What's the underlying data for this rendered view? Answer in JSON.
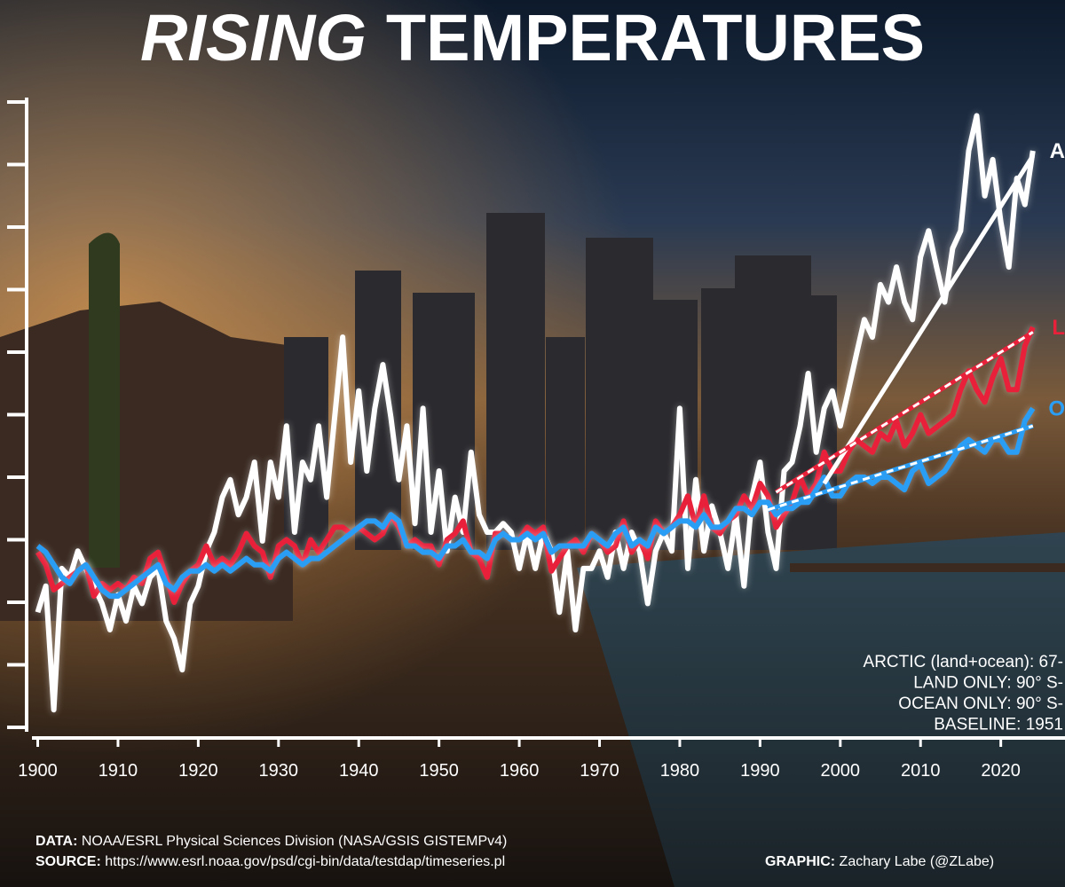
{
  "chart_data": {
    "type": "line",
    "title_emphasis": "RISING",
    "title": "TEMPERATURES",
    "x": [
      1900,
      1901,
      1902,
      1903,
      1904,
      1905,
      1906,
      1907,
      1908,
      1909,
      1910,
      1911,
      1912,
      1913,
      1914,
      1915,
      1916,
      1917,
      1918,
      1919,
      1920,
      1921,
      1922,
      1923,
      1924,
      1925,
      1926,
      1927,
      1928,
      1929,
      1930,
      1931,
      1932,
      1933,
      1934,
      1935,
      1936,
      1937,
      1938,
      1939,
      1940,
      1941,
      1942,
      1943,
      1944,
      1945,
      1946,
      1947,
      1948,
      1949,
      1950,
      1951,
      1952,
      1953,
      1954,
      1955,
      1956,
      1957,
      1958,
      1959,
      1960,
      1961,
      1962,
      1963,
      1964,
      1965,
      1966,
      1967,
      1968,
      1969,
      1970,
      1971,
      1972,
      1973,
      1974,
      1975,
      1976,
      1977,
      1978,
      1979,
      1980,
      1981,
      1982,
      1983,
      1984,
      1985,
      1986,
      1987,
      1988,
      1989,
      1990,
      1991,
      1992,
      1993,
      1994,
      1995,
      1996,
      1997,
      1998,
      1999,
      2000,
      2001,
      2002,
      2003,
      2004,
      2005,
      2006,
      2007,
      2008,
      2009,
      2010,
      2011,
      2012,
      2013,
      2014,
      2015,
      2016,
      2017,
      2018,
      2019,
      2020,
      2021,
      2022,
      2023,
      2024
    ],
    "series": [
      {
        "name": "A",
        "color": "#ffffff",
        "values": [
          -0.58,
          -0.37,
          -1.36,
          -0.23,
          -0.3,
          -0.09,
          -0.23,
          -0.37,
          -0.51,
          -0.72,
          -0.44,
          -0.65,
          -0.37,
          -0.51,
          -0.3,
          -0.23,
          -0.65,
          -0.79,
          -1.04,
          -0.51,
          -0.37,
          -0.09,
          0.06,
          0.34,
          0.48,
          0.2,
          0.34,
          0.62,
          -0.01,
          0.62,
          0.34,
          0.91,
          0.06,
          0.62,
          0.48,
          0.91,
          0.34,
          0.98,
          1.62,
          0.62,
          1.19,
          0.55,
          1.05,
          1.4,
          0.98,
          0.48,
          0.91,
          0.13,
          1.05,
          0.06,
          0.55,
          -0.09,
          0.34,
          0.06,
          0.7,
          0.2,
          0.06,
          0.06,
          0.13,
          0.06,
          -0.23,
          0.06,
          -0.23,
          0.06,
          -0.09,
          -0.58,
          -0.09,
          -0.72,
          -0.23,
          -0.23,
          -0.09,
          -0.3,
          0.06,
          -0.23,
          0.06,
          -0.09,
          -0.51,
          -0.09,
          0.06,
          -0.09,
          1.05,
          -0.23,
          0.48,
          -0.09,
          0.27,
          0.06,
          -0.23,
          0.2,
          -0.37,
          0.34,
          0.62,
          0.06,
          -0.23,
          0.55,
          0.62,
          0.91,
          1.33,
          0.7,
          1.05,
          1.19,
          0.91,
          1.19,
          1.48,
          1.76,
          1.62,
          2.04,
          1.9,
          2.18,
          1.9,
          1.76,
          2.26,
          2.47,
          2.18,
          1.9,
          2.33,
          2.47,
          3.11,
          3.39,
          2.75,
          3.04,
          2.54,
          2.18,
          2.89,
          2.68,
          3.11
        ],
        "trend_x": [
          1998,
          2024
        ],
        "trend": [
          0.45,
          3.07
        ]
      },
      {
        "name": "L",
        "color": "#e8203a",
        "values": [
          -0.1,
          -0.2,
          -0.4,
          -0.35,
          -0.3,
          -0.25,
          -0.2,
          -0.45,
          -0.35,
          -0.4,
          -0.35,
          -0.4,
          -0.3,
          -0.35,
          -0.15,
          -0.1,
          -0.3,
          -0.5,
          -0.35,
          -0.25,
          -0.2,
          -0.05,
          -0.2,
          -0.15,
          -0.2,
          -0.1,
          0.05,
          -0.05,
          -0.1,
          -0.3,
          -0.05,
          0.0,
          -0.05,
          -0.2,
          0.0,
          -0.1,
          0.0,
          0.1,
          0.1,
          0.05,
          0.1,
          0.05,
          0.0,
          0.05,
          0.2,
          0.1,
          -0.05,
          0.0,
          -0.05,
          -0.05,
          -0.2,
          0.0,
          0.05,
          0.15,
          -0.1,
          -0.15,
          -0.3,
          0.05,
          0.05,
          0.0,
          0.0,
          0.1,
          0.05,
          0.1,
          -0.25,
          -0.15,
          -0.05,
          0.0,
          -0.1,
          0.05,
          0.0,
          -0.1,
          -0.05,
          0.15,
          -0.1,
          0.0,
          -0.15,
          0.15,
          0.05,
          0.1,
          0.2,
          0.35,
          0.1,
          0.35,
          0.1,
          0.05,
          0.15,
          0.2,
          0.35,
          0.25,
          0.45,
          0.35,
          0.1,
          0.2,
          0.3,
          0.5,
          0.35,
          0.45,
          0.7,
          0.55,
          0.55,
          0.7,
          0.8,
          0.75,
          0.7,
          0.85,
          0.8,
          0.95,
          0.75,
          0.85,
          1.0,
          0.85,
          0.9,
          0.95,
          1.0,
          1.2,
          1.35,
          1.2,
          1.1,
          1.3,
          1.45,
          1.2,
          1.2,
          1.55,
          1.7
        ],
        "trend_x": [
          1992,
          2024
        ],
        "trend": [
          0.38,
          1.66
        ]
      },
      {
        "name": "O",
        "color": "#2a9df4",
        "values": [
          -0.05,
          -0.1,
          -0.2,
          -0.3,
          -0.35,
          -0.25,
          -0.2,
          -0.3,
          -0.4,
          -0.45,
          -0.45,
          -0.4,
          -0.35,
          -0.3,
          -0.25,
          -0.2,
          -0.35,
          -0.4,
          -0.3,
          -0.25,
          -0.25,
          -0.2,
          -0.25,
          -0.2,
          -0.25,
          -0.2,
          -0.15,
          -0.2,
          -0.2,
          -0.25,
          -0.15,
          -0.1,
          -0.15,
          -0.2,
          -0.15,
          -0.15,
          -0.1,
          -0.05,
          0.0,
          0.05,
          0.1,
          0.15,
          0.15,
          0.1,
          0.2,
          0.15,
          -0.05,
          -0.05,
          -0.1,
          -0.1,
          -0.15,
          -0.05,
          -0.05,
          0.0,
          -0.1,
          -0.1,
          -0.15,
          0.0,
          0.05,
          0.0,
          0.0,
          0.05,
          0.0,
          0.05,
          -0.1,
          -0.05,
          -0.05,
          -0.05,
          -0.05,
          0.05,
          0.0,
          -0.05,
          0.05,
          0.1,
          -0.05,
          0.0,
          -0.05,
          0.1,
          0.05,
          0.1,
          0.15,
          0.15,
          0.1,
          0.2,
          0.1,
          0.1,
          0.15,
          0.25,
          0.25,
          0.2,
          0.3,
          0.3,
          0.2,
          0.25,
          0.25,
          0.3,
          0.3,
          0.4,
          0.5,
          0.35,
          0.35,
          0.45,
          0.5,
          0.5,
          0.45,
          0.5,
          0.5,
          0.45,
          0.4,
          0.55,
          0.6,
          0.45,
          0.5,
          0.55,
          0.65,
          0.75,
          0.8,
          0.75,
          0.7,
          0.8,
          0.8,
          0.7,
          0.7,
          0.95,
          1.05
        ],
        "trend_x": [
          1991,
          2024
        ],
        "trend": [
          0.24,
          0.91
        ]
      }
    ],
    "xlim": [
      1899.5,
      2028
    ],
    "xticks": [
      1900,
      1910,
      1920,
      1930,
      1940,
      1950,
      1960,
      1970,
      1980,
      1990,
      2000,
      2010,
      2020
    ],
    "ylim": [
      -1.6,
      3.5
    ],
    "yticks": [
      -1.5,
      -1,
      -0.5,
      0,
      0.5,
      1,
      1.5,
      2,
      2.5,
      3,
      3.5
    ],
    "annotations": [
      "ARCTIC (land+ocean): 67-",
      "LAND ONLY: 90° S-",
      "OCEAN ONLY: 90° S-",
      "BASELINE: 1951"
    ],
    "credits": [
      {
        "label": "DATA:",
        "text": " NOAA/ESRL Physical Sciences Division (NASA/GSIS GISTEMPv4)"
      },
      {
        "label": "SOURCE:",
        "text": " https://www.esrl.noaa.gov/psd/cgi-bin/data/testdap/timeseries.pl"
      },
      {
        "label": "GRAPHIC:",
        "text": " Zachary Labe (@ZLabe)"
      }
    ]
  }
}
